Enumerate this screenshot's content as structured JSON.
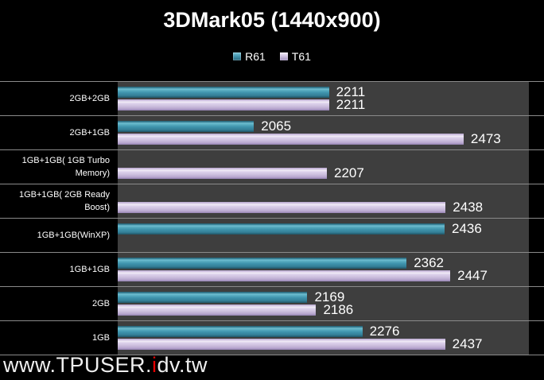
{
  "title": "3DMark05 (1440x900)",
  "legend": {
    "items": [
      {
        "label": "R61",
        "color": "#3e93ac",
        "marker": "r61-series-swatch"
      },
      {
        "label": "T61",
        "color": "#cfc2e0",
        "marker": "t61-series-swatch"
      }
    ],
    "position": "top-center"
  },
  "watermark": {
    "prefix": "www.TPUSER.",
    "highlight": "i",
    "suffix": "dv.tw",
    "highlight_color": "#e60000"
  },
  "colors": {
    "background": "#000000",
    "plot_background": "#3e3e3e",
    "gridline": "#8a8a8a",
    "text": "#ffffff",
    "r61_bar": "#3e93ac",
    "t61_bar": "#cfc2e0"
  },
  "chart_data": {
    "type": "bar",
    "orientation": "horizontal",
    "title": "3DMark05 (1440x900)",
    "xlabel": "",
    "ylabel": "",
    "xlim": [
      1800,
      2600
    ],
    "grid": "category-separators",
    "legend_position": "top",
    "value_labels": true,
    "categories": [
      "2GB+2GB",
      "2GB+1GB",
      "1GB+1GB( 1GB Turbo Memory)",
      "1GB+1GB( 2GB Ready Boost)",
      "1GB+1GB(WinXP)",
      "1GB+1GB",
      "2GB",
      "1GB"
    ],
    "series": [
      {
        "name": "R61",
        "color": "#3e93ac",
        "values": [
          2211,
          2065,
          null,
          null,
          2436,
          2362,
          2169,
          2276
        ]
      },
      {
        "name": "T61",
        "color": "#cfc2e0",
        "values": [
          2211,
          2473,
          2207,
          2438,
          null,
          2447,
          2186,
          2437
        ]
      }
    ]
  }
}
